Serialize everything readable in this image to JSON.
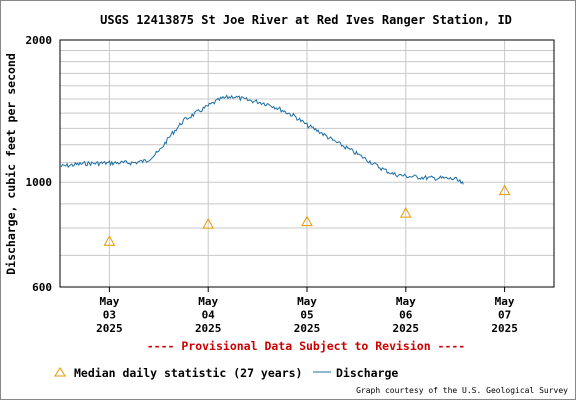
{
  "chart_data": {
    "type": "line",
    "title": "USGS 12413875 St Joe River at Red Ives Ranger Station, ID",
    "ylabel": "Discharge, cubic feet per second",
    "y_scale": "log",
    "ylim": [
      600,
      2000
    ],
    "y_ticks": [
      "2000",
      "1000",
      "600"
    ],
    "x_ticks": [
      {
        "label": [
          "May",
          "03",
          "2025"
        ],
        "date": "2025-05-03"
      },
      {
        "label": [
          "May",
          "04",
          "2025"
        ],
        "date": "2025-05-04"
      },
      {
        "label": [
          "May",
          "05",
          "2025"
        ],
        "date": "2025-05-05"
      },
      {
        "label": [
          "May",
          "06",
          "2025"
        ],
        "date": "2025-05-06"
      },
      {
        "label": [
          "May",
          "07",
          "2025"
        ],
        "date": "2025-05-07"
      }
    ],
    "xlim": [
      "2025-05-02T12:00",
      "2025-05-07T12:00"
    ],
    "grid": true,
    "series": [
      {
        "name": "Discharge",
        "color": "#1e6fa5",
        "marker": "line",
        "points": [
          {
            "x": "2025-05-02T12:00",
            "y": 1080
          },
          {
            "x": "2025-05-02T18:00",
            "y": 1095
          },
          {
            "x": "2025-05-03T00:00",
            "y": 1098
          },
          {
            "x": "2025-05-03T06:00",
            "y": 1100
          },
          {
            "x": "2025-05-03T09:00",
            "y": 1110
          },
          {
            "x": "2025-05-03T12:00",
            "y": 1160
          },
          {
            "x": "2025-05-03T15:00",
            "y": 1260
          },
          {
            "x": "2025-05-03T18:00",
            "y": 1350
          },
          {
            "x": "2025-05-03T21:00",
            "y": 1400
          },
          {
            "x": "2025-05-04T00:00",
            "y": 1450
          },
          {
            "x": "2025-05-04T03:00",
            "y": 1500
          },
          {
            "x": "2025-05-04T06:00",
            "y": 1520
          },
          {
            "x": "2025-05-04T09:00",
            "y": 1495
          },
          {
            "x": "2025-05-04T12:00",
            "y": 1480
          },
          {
            "x": "2025-05-04T15:00",
            "y": 1460
          },
          {
            "x": "2025-05-04T18:00",
            "y": 1420
          },
          {
            "x": "2025-05-04T21:00",
            "y": 1380
          },
          {
            "x": "2025-05-05T00:00",
            "y": 1320
          },
          {
            "x": "2025-05-05T03:00",
            "y": 1280
          },
          {
            "x": "2025-05-05T06:00",
            "y": 1230
          },
          {
            "x": "2025-05-05T09:00",
            "y": 1190
          },
          {
            "x": "2025-05-05T12:00",
            "y": 1150
          },
          {
            "x": "2025-05-05T15:00",
            "y": 1110
          },
          {
            "x": "2025-05-05T18:00",
            "y": 1070
          },
          {
            "x": "2025-05-05T21:00",
            "y": 1040
          },
          {
            "x": "2025-05-06T00:00",
            "y": 1030
          },
          {
            "x": "2025-05-06T03:00",
            "y": 1025
          },
          {
            "x": "2025-05-06T06:00",
            "y": 1020
          },
          {
            "x": "2025-05-06T09:00",
            "y": 1020
          },
          {
            "x": "2025-05-06T12:00",
            "y": 1015
          },
          {
            "x": "2025-05-06T14:00",
            "y": 990
          }
        ]
      },
      {
        "name": "Median daily statistic (27 years)",
        "color": "#e69a00",
        "marker": "triangle",
        "points": [
          {
            "x": "2025-05-03T00:00",
            "y": 750
          },
          {
            "x": "2025-05-04T00:00",
            "y": 815
          },
          {
            "x": "2025-05-05T00:00",
            "y": 825
          },
          {
            "x": "2025-05-06T00:00",
            "y": 860
          },
          {
            "x": "2025-05-07T00:00",
            "y": 960
          }
        ]
      }
    ]
  },
  "provisional_text": "---- Provisional Data Subject to Revision ----",
  "legend": {
    "median_label": "Median daily statistic (27 years)",
    "discharge_label": "Discharge"
  },
  "credit": "Graph courtesy of the U.S. Geological Survey"
}
